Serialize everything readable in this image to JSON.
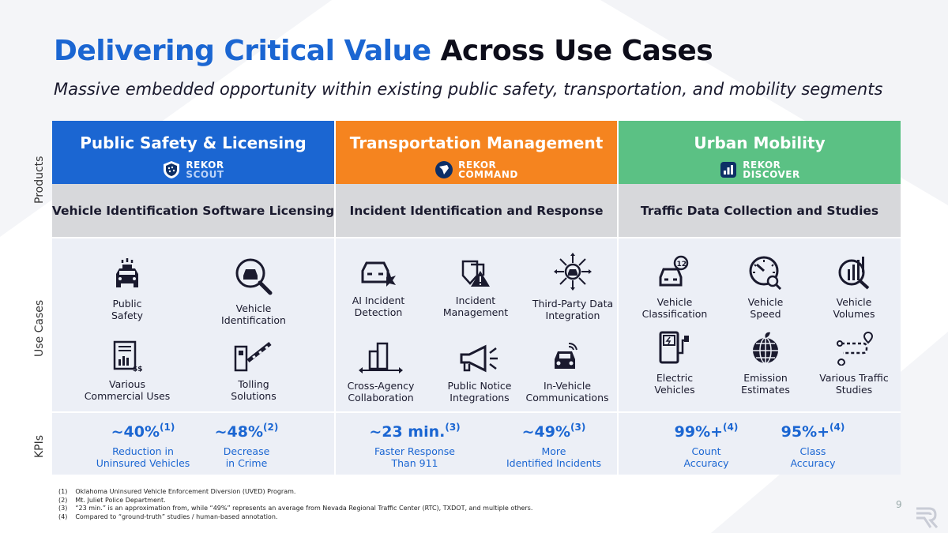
{
  "title": {
    "accent": "Delivering Critical Value",
    "rest": " Across Use Cases"
  },
  "subtitle": "Massive embedded opportunity within existing public safety, transportation, and mobility segments",
  "side_labels": {
    "products": "Products",
    "use_cases": "Use Cases",
    "kpis": "KPIs"
  },
  "colors": {
    "blue": "#1b66d2",
    "orange": "#f5841f",
    "green": "#5bc184",
    "gray_row": "#d7d8db"
  },
  "columns": [
    {
      "header": "Public Safety & Licensing",
      "logo_line1": "REKOR",
      "logo_line2": "SCOUT",
      "subheader": "Vehicle Identification Software Licensing",
      "use_cases_top": [
        {
          "label": "Public\nSafety",
          "icon": "police-car-icon"
        },
        {
          "label": "Vehicle\nIdentification",
          "icon": "vehicle-search-icon"
        }
      ],
      "use_cases_bottom": [
        {
          "label": "Various\nCommercial Uses",
          "icon": "report-chart-icon"
        },
        {
          "label": "Tolling\nSolutions",
          "icon": "toll-gate-icon"
        }
      ],
      "kpis": [
        {
          "value": "~40%",
          "ref": "(1)",
          "desc": "Reduction in\nUninsured Vehicles"
        },
        {
          "value": "~48%",
          "ref": "(2)",
          "desc": "Decrease\nin Crime"
        }
      ]
    },
    {
      "header": "Transportation Management",
      "logo_line1": "REKOR",
      "logo_line2": "COMMAND",
      "subheader": "Incident Identification and Response",
      "use_cases_top": [
        {
          "label": "AI Incident\nDetection",
          "icon": "car-crash-icon"
        },
        {
          "label": "Incident\nManagement",
          "icon": "warning-signs-icon"
        },
        {
          "label": "Third-Party Data\nIntegration",
          "icon": "data-integration-icon"
        }
      ],
      "use_cases_bottom": [
        {
          "label": "Cross-Agency\nCollaboration",
          "icon": "collaboration-icon"
        },
        {
          "label": "Public Notice\nIntegrations",
          "icon": "megaphone-icon"
        },
        {
          "label": "In-Vehicle\nCommunications",
          "icon": "connected-car-icon"
        }
      ],
      "kpis": [
        {
          "value": "~23 min.",
          "ref": "(3)",
          "desc": "Faster Response\nThan 911"
        },
        {
          "value": "~49%",
          "ref": "(3)",
          "desc": "More\nIdentified Incidents"
        }
      ]
    },
    {
      "header": "Urban Mobility",
      "logo_line1": "REKOR",
      "logo_line2": "DISCOVER",
      "subheader": "Traffic Data Collection and Studies",
      "use_cases_top": [
        {
          "label": "Vehicle\nClassification",
          "icon": "car-count-icon"
        },
        {
          "label": "Vehicle\nSpeed",
          "icon": "speedometer-icon"
        },
        {
          "label": "Vehicle\nVolumes",
          "icon": "volume-chart-icon"
        }
      ],
      "use_cases_bottom": [
        {
          "label": "Electric\nVehicles",
          "icon": "ev-charger-icon"
        },
        {
          "label": "Emission\nEstimates",
          "icon": "globe-leaf-icon"
        },
        {
          "label": "Various Traffic\nStudies",
          "icon": "route-icon"
        }
      ],
      "kpis": [
        {
          "value": "99%+",
          "ref": "(4)",
          "desc": "Count\nAccuracy"
        },
        {
          "value": "95%+",
          "ref": "(4)",
          "desc": "Class\nAccuracy"
        }
      ]
    }
  ],
  "footnotes": [
    {
      "num": "(1)",
      "text": "Oklahoma Uninsured Vehicle Enforcement Diversion (UVED) Program."
    },
    {
      "num": "(2)",
      "text": "Mt. Juliet Police Department."
    },
    {
      "num": "(3)",
      "text": "“23 min.” is an approximation from, while “49%” represents an average from Nevada Regional Traffic Center (RTC), TXDOT, and multiple others."
    },
    {
      "num": "(4)",
      "text": "Compared to “ground-truth” studies / human-based annotation."
    }
  ],
  "page_number": "9"
}
